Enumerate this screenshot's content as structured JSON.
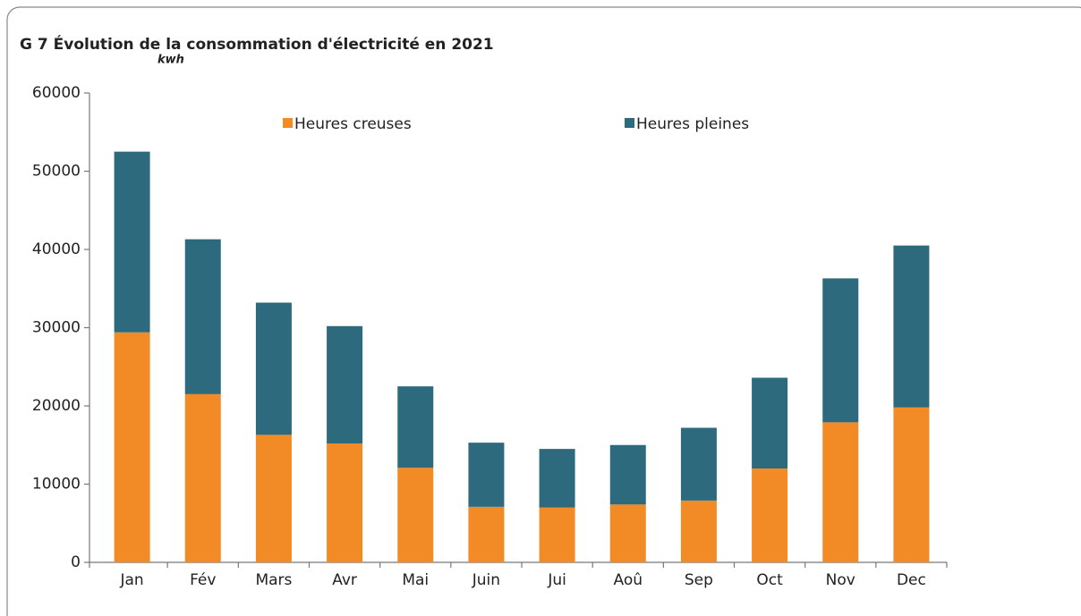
{
  "chart_data": {
    "type": "stacked_bar",
    "title": "G 7 Évolution de la consommation d'électricité en 2021",
    "y_label": "kwh",
    "categories": [
      "Jan",
      "Fév",
      "Mars",
      "Avr",
      "Mai",
      "Juin",
      "Jui",
      "Aoû",
      "Sep",
      "Oct",
      "Nov",
      "Dec"
    ],
    "series": [
      {
        "name": "Heures creuses",
        "color": "#f28a26",
        "values": [
          29400,
          21500,
          16300,
          15200,
          12100,
          7100,
          7000,
          7400,
          7900,
          12000,
          17900,
          19800
        ]
      },
      {
        "name": "Heures pleines",
        "color": "#2e6a7e",
        "values": [
          23100,
          19800,
          16900,
          15000,
          10400,
          8200,
          7500,
          7600,
          9300,
          11600,
          18400,
          20700
        ]
      }
    ],
    "ylim": [
      0,
      60000
    ],
    "yticks": [
      0,
      10000,
      20000,
      30000,
      40000,
      50000,
      60000
    ],
    "grid": false,
    "legend": "top"
  }
}
